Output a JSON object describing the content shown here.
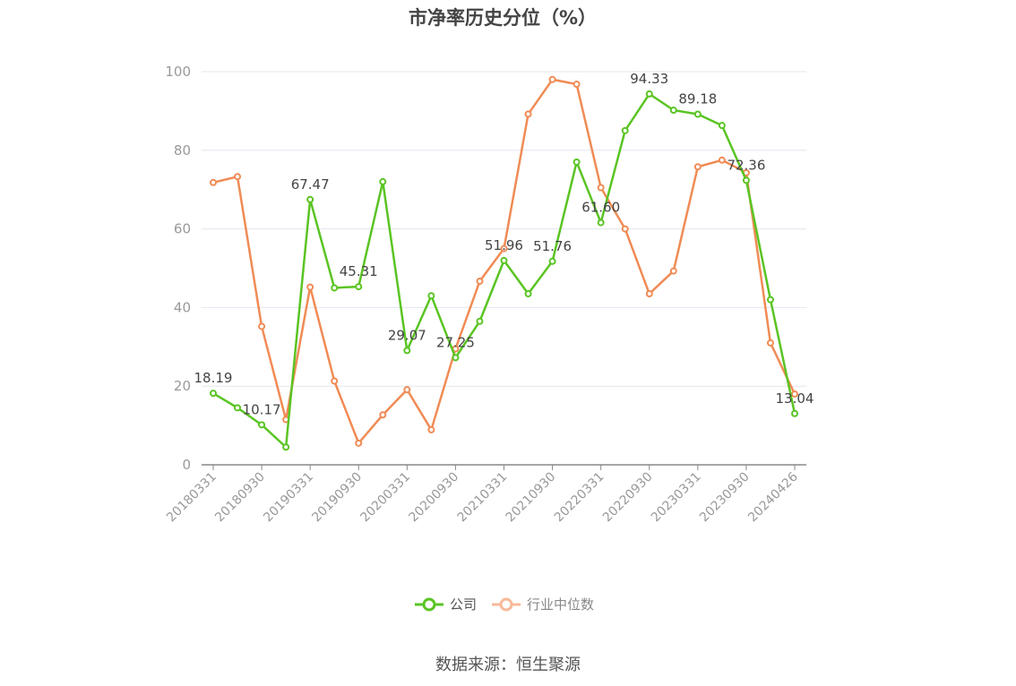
{
  "title": "市净率历史分位（%）",
  "source": "数据来源：恒生聚源",
  "colors": {
    "company": "#5ac423",
    "industry": "#f08b55",
    "industry_legend": "#f7b99a",
    "grid": "#e3e6ef",
    "axis": "#888888",
    "text": "#444444"
  },
  "chart_data": {
    "type": "line",
    "title": "市净率历史分位（%）",
    "xlabel": "",
    "ylabel": "",
    "ylim": [
      0,
      100
    ],
    "yticks": [
      0,
      20,
      40,
      60,
      80,
      100
    ],
    "grid": true,
    "legend_position": "bottom",
    "x": [
      "20180331",
      "20180630",
      "20180930",
      "20181231",
      "20190331",
      "20190630",
      "20190930",
      "20191231",
      "20200331",
      "20200630",
      "20200930",
      "20201231",
      "20210331",
      "20210630",
      "20210930",
      "20211231",
      "20220331",
      "20220630",
      "20220930",
      "20221231",
      "20230331",
      "20230630",
      "20230930",
      "20231231",
      "20240426"
    ],
    "xtick_labels": [
      "20180331",
      "20180930",
      "20190331",
      "20190930",
      "20200331",
      "20200930",
      "20210331",
      "20210930",
      "20220331",
      "20220930",
      "20230331",
      "20230930",
      "20240426"
    ],
    "series": [
      {
        "name": "公司",
        "values": [
          18.19,
          14.5,
          10.17,
          4.5,
          67.47,
          45.0,
          45.31,
          72.0,
          29.07,
          43.0,
          27.25,
          36.5,
          51.96,
          43.5,
          51.76,
          77.0,
          61.6,
          85.0,
          94.33,
          90.2,
          89.18,
          86.3,
          72.36,
          42.0,
          13.04
        ],
        "labels": [
          "18.19",
          "",
          "10.17",
          "",
          "67.47",
          "",
          "45.31",
          "",
          "29.07",
          "",
          "27.25",
          "",
          "51.96",
          "",
          "51.76",
          "",
          "61.60",
          "",
          "94.33",
          "",
          "89.18",
          "",
          "72.36",
          "",
          "13.04"
        ]
      },
      {
        "name": "行业中位数",
        "values": [
          71.8,
          73.3,
          35.2,
          11.5,
          45.2,
          21.3,
          5.5,
          12.7,
          19.1,
          8.9,
          29.5,
          46.7,
          55.0,
          89.2,
          98.0,
          96.8,
          70.5,
          60.0,
          43.5,
          49.3,
          75.8,
          77.5,
          74.3,
          31.0,
          18.0
        ]
      }
    ]
  }
}
